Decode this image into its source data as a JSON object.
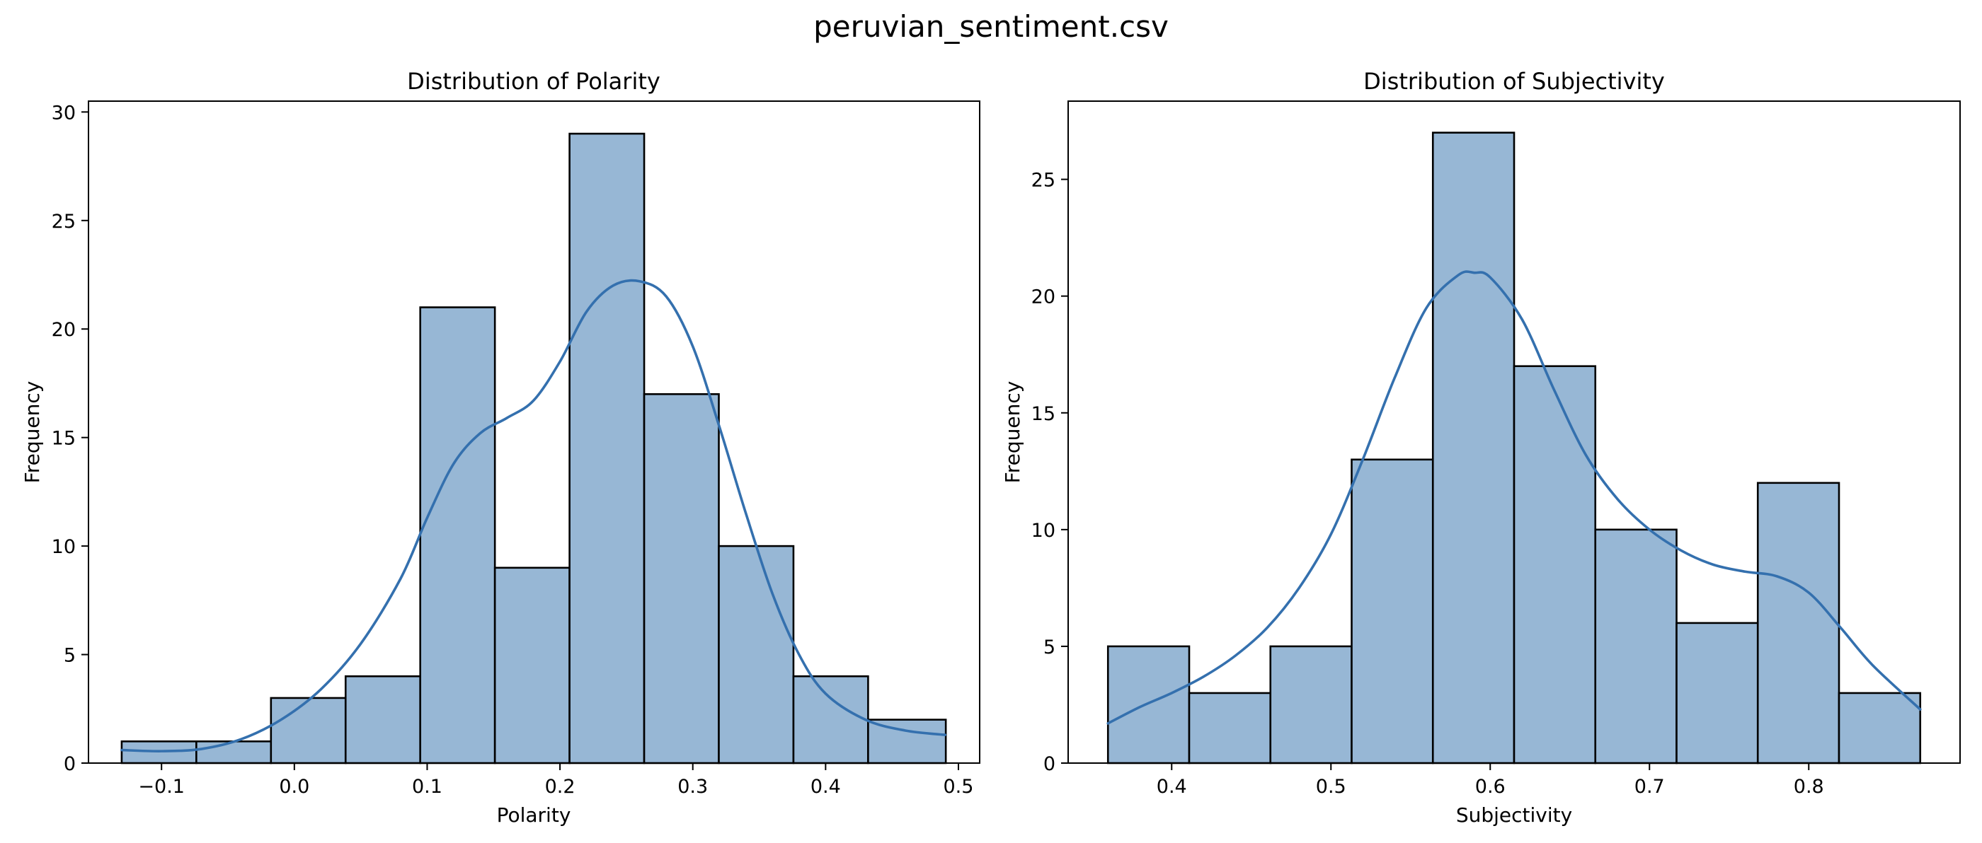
{
  "figure": {
    "title": "peruvian_sentiment.csv"
  },
  "colors": {
    "bar_fill": "#97b7d5",
    "bar_edge": "#000000",
    "kde_line": "#3470ae"
  },
  "chart_data": [
    {
      "type": "bar",
      "subtype": "histogram-with-kde",
      "title": "Distribution of Polarity",
      "xlabel": "Polarity",
      "ylabel": "Frequency",
      "xlim": [
        -0.155,
        0.516
      ],
      "ylim": [
        0,
        30.5
      ],
      "xticks": [
        -0.1,
        0.0,
        0.1,
        0.2,
        0.3,
        0.4,
        0.5
      ],
      "xtick_labels": [
        "−0.1",
        "0.0",
        "0.1",
        "0.2",
        "0.3",
        "0.4",
        "0.5"
      ],
      "yticks": [
        0,
        5,
        10,
        15,
        20,
        25,
        30
      ],
      "ytick_labels": [
        "0",
        "5",
        "10",
        "15",
        "20",
        "25",
        "30"
      ],
      "bin_edges": [
        -0.13,
        -0.0738,
        -0.0176,
        0.0386,
        0.0948,
        0.151,
        0.2072,
        0.2634,
        0.3196,
        0.3758,
        0.432,
        0.4905
      ],
      "values": [
        1,
        1,
        3,
        4,
        21,
        9,
        29,
        17,
        10,
        4,
        2
      ],
      "kde": {
        "x": [
          -0.13,
          -0.1,
          -0.07,
          -0.04,
          -0.01,
          0.02,
          0.05,
          0.08,
          0.1,
          0.12,
          0.14,
          0.16,
          0.18,
          0.2,
          0.22,
          0.24,
          0.26,
          0.28,
          0.3,
          0.32,
          0.34,
          0.36,
          0.38,
          0.4,
          0.43,
          0.46,
          0.49
        ],
        "y": [
          0.6,
          0.55,
          0.65,
          1.1,
          2.0,
          3.4,
          5.5,
          8.5,
          11.3,
          13.8,
          15.2,
          15.9,
          16.7,
          18.5,
          20.8,
          22.0,
          22.2,
          21.5,
          19.2,
          15.5,
          11.5,
          7.8,
          5.0,
          3.2,
          2.0,
          1.5,
          1.3
        ]
      }
    },
    {
      "type": "bar",
      "subtype": "histogram-with-kde",
      "title": "Distribution of Subjectivity",
      "xlabel": "Subjectivity",
      "ylabel": "Frequency",
      "xlim": [
        0.335,
        0.895
      ],
      "ylim": [
        0,
        28.35
      ],
      "xticks": [
        0.4,
        0.5,
        0.6,
        0.7,
        0.8
      ],
      "xtick_labels": [
        "0.4",
        "0.5",
        "0.6",
        "0.7",
        "0.8"
      ],
      "yticks": [
        0,
        5,
        10,
        15,
        20,
        25
      ],
      "ytick_labels": [
        "0",
        "5",
        "10",
        "15",
        "20",
        "25"
      ],
      "bin_edges": [
        0.36,
        0.411,
        0.462,
        0.513,
        0.564,
        0.615,
        0.666,
        0.717,
        0.768,
        0.819,
        0.87
      ],
      "values": [
        5,
        3,
        5,
        13,
        27,
        17,
        10,
        6,
        12,
        3
      ],
      "kde": {
        "x": [
          0.36,
          0.38,
          0.4,
          0.42,
          0.44,
          0.46,
          0.48,
          0.5,
          0.52,
          0.54,
          0.56,
          0.58,
          0.59,
          0.6,
          0.62,
          0.64,
          0.66,
          0.68,
          0.7,
          0.72,
          0.74,
          0.76,
          0.78,
          0.8,
          0.82,
          0.84,
          0.87
        ],
        "y": [
          1.7,
          2.4,
          3.0,
          3.7,
          4.6,
          5.8,
          7.5,
          9.8,
          13.0,
          16.5,
          19.5,
          20.9,
          21.0,
          20.8,
          19.0,
          16.0,
          13.2,
          11.3,
          10.0,
          9.1,
          8.5,
          8.2,
          8.0,
          7.3,
          5.8,
          4.2,
          2.3
        ]
      }
    }
  ]
}
